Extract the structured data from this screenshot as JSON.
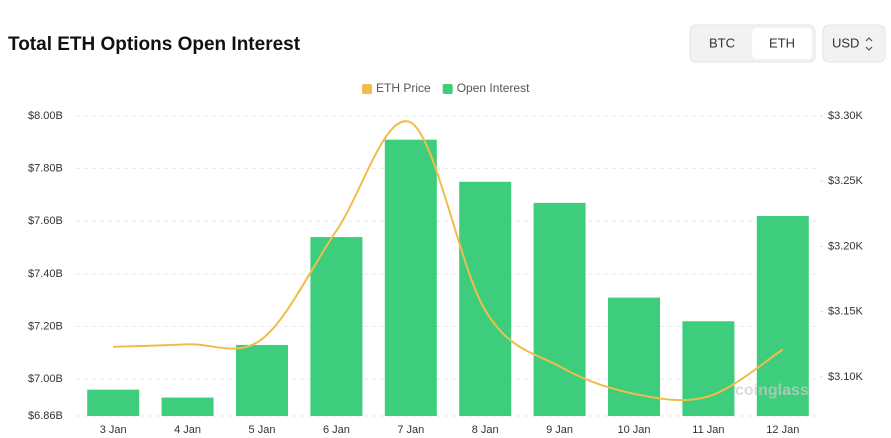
{
  "chart_data": {
    "type": "bar_line",
    "title": "Total ETH Options Open Interest",
    "categories": [
      "3 Jan",
      "4 Jan",
      "5 Jan",
      "6 Jan",
      "7 Jan",
      "8 Jan",
      "9 Jan",
      "10 Jan",
      "11 Jan",
      "12 Jan"
    ],
    "series": [
      {
        "name": "ETH Price",
        "type": "line",
        "axis": "y2",
        "color": "#f0bd4a",
        "values": [
          3.123,
          3.125,
          3.129,
          3.212,
          3.295,
          3.151,
          3.108,
          3.087,
          3.085,
          3.121
        ]
      },
      {
        "name": "Open Interest",
        "type": "bar",
        "color": "#3ecd7c",
        "values": [
          6.96,
          6.93,
          7.13,
          7.54,
          7.91,
          7.75,
          7.67,
          7.31,
          7.22,
          7.62
        ]
      }
    ],
    "ylim": [
      6.86,
      8.0
    ],
    "yticks": [
      {
        "value": 6.86,
        "label": "$6.86B"
      },
      {
        "value": 7.0,
        "label": "$7.00B"
      },
      {
        "value": 7.2,
        "label": "$7.20B"
      },
      {
        "value": 7.4,
        "label": "$7.40B"
      },
      {
        "value": 7.6,
        "label": "$7.60B"
      },
      {
        "value": 7.8,
        "label": "$7.80B"
      },
      {
        "value": 8.0,
        "label": "$8.00B"
      }
    ],
    "y2lim": [
      3.07,
      3.3
    ],
    "y2ticks": [
      {
        "value": 3.1,
        "label": "$3.10K"
      },
      {
        "value": 3.15,
        "label": "$3.15K"
      },
      {
        "value": 3.2,
        "label": "$3.20K"
      },
      {
        "value": 3.25,
        "label": "$3.25K"
      },
      {
        "value": 3.3,
        "label": "$3.30K"
      }
    ],
    "grid": true,
    "legend": "top"
  },
  "controls": {
    "coin_tabs": [
      "BTC",
      "ETH"
    ],
    "selected_tab": 1,
    "currency": "USD",
    "watermark": "coinglass"
  }
}
